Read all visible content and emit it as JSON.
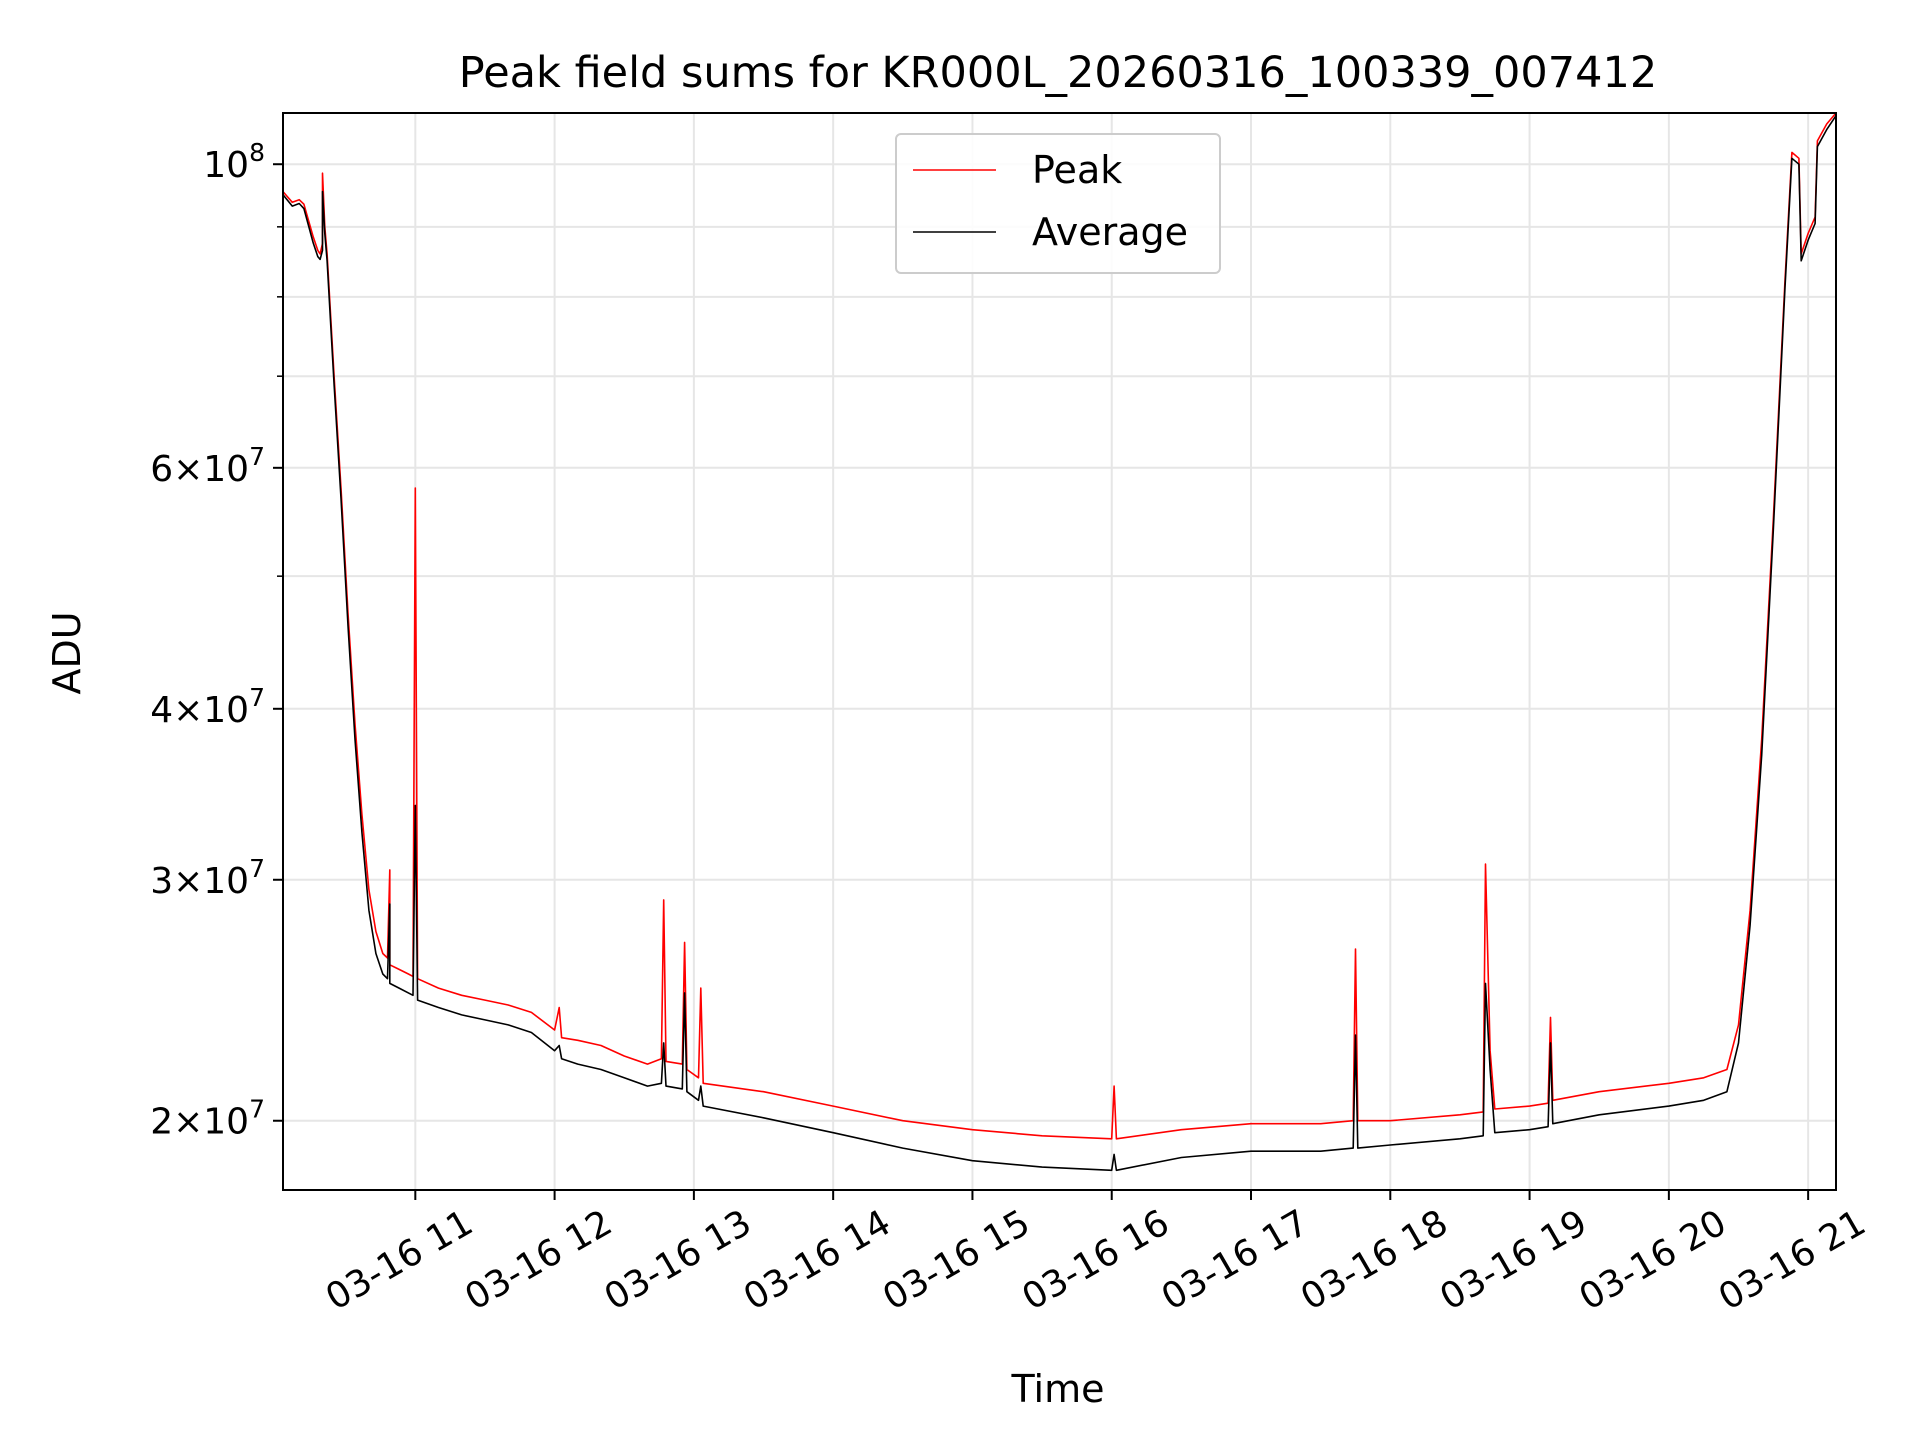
{
  "chart_data": {
    "type": "line",
    "title": "Peak field sums for KR000L_20260316_100339_007412",
    "xlabel": "Time",
    "ylabel": "ADU",
    "yscale": "log",
    "ylim": [
      17800000,
      109000000
    ],
    "xlim": [
      "2026-03-16 10:03",
      "2026-03-16 21:12"
    ],
    "grid": true,
    "legend_position": "upper center",
    "x_ticks": [
      {
        "t": "2026-03-16 11:00",
        "label": "03-16 11"
      },
      {
        "t": "2026-03-16 12:00",
        "label": "03-16 12"
      },
      {
        "t": "2026-03-16 13:00",
        "label": "03-16 13"
      },
      {
        "t": "2026-03-16 14:00",
        "label": "03-16 14"
      },
      {
        "t": "2026-03-16 15:00",
        "label": "03-16 15"
      },
      {
        "t": "2026-03-16 16:00",
        "label": "03-16 16"
      },
      {
        "t": "2026-03-16 17:00",
        "label": "03-16 17"
      },
      {
        "t": "2026-03-16 18:00",
        "label": "03-16 18"
      },
      {
        "t": "2026-03-16 19:00",
        "label": "03-16 19"
      },
      {
        "t": "2026-03-16 20:00",
        "label": "03-16 20"
      },
      {
        "t": "2026-03-16 21:00",
        "label": "03-16 21"
      }
    ],
    "y_major_ticks": [
      {
        "value": 20000000,
        "mant": "2",
        "exp": "7"
      },
      {
        "value": 30000000,
        "mant": "3",
        "exp": "7"
      },
      {
        "value": 40000000,
        "mant": "4",
        "exp": "7"
      },
      {
        "value": 60000000,
        "mant": "6",
        "exp": "7"
      },
      {
        "value": 100000000,
        "mant": "",
        "exp": "8"
      }
    ],
    "y_minor_ticks": [
      50000000,
      70000000,
      80000000,
      90000000
    ],
    "series": [
      {
        "name": "Peak",
        "color": "#ff0000",
        "points": [
          [
            "2026-03-16 10:03",
            95500000
          ],
          [
            "2026-03-16 10:07",
            93800000
          ],
          [
            "2026-03-16 10:10",
            94200000
          ],
          [
            "2026-03-16 10:12",
            93500000
          ],
          [
            "2026-03-16 10:14",
            91000000
          ],
          [
            "2026-03-16 10:16",
            88500000
          ],
          [
            "2026-03-16 10:18",
            86500000
          ],
          [
            "2026-03-16 10:19",
            86000000
          ],
          [
            "2026-03-16 10:20",
            87500000
          ],
          [
            "2026-03-16 10:20",
            98500000
          ],
          [
            "2026-03-16 10:21",
            90000000
          ],
          [
            "2026-03-16 10:22",
            86000000
          ],
          [
            "2026-03-16 10:25",
            70000000
          ],
          [
            "2026-03-16 10:28",
            58000000
          ],
          [
            "2026-03-16 10:31",
            47000000
          ],
          [
            "2026-03-16 10:34",
            39000000
          ],
          [
            "2026-03-16 10:37",
            33500000
          ],
          [
            "2026-03-16 10:40",
            29500000
          ],
          [
            "2026-03-16 10:43",
            27500000
          ],
          [
            "2026-03-16 10:46",
            26500000
          ],
          [
            "2026-03-16 10:48",
            26300000
          ],
          [
            "2026-03-16 10:49",
            30500000
          ],
          [
            "2026-03-16 10:49",
            26000000
          ],
          [
            "2026-03-16 10:53",
            25800000
          ],
          [
            "2026-03-16 10:57",
            25600000
          ],
          [
            "2026-03-16 10:59",
            25500000
          ],
          [
            "2026-03-16 11:00",
            58000000
          ],
          [
            "2026-03-16 11:01",
            25400000
          ],
          [
            "2026-03-16 11:10",
            25000000
          ],
          [
            "2026-03-16 11:20",
            24700000
          ],
          [
            "2026-03-16 11:30",
            24500000
          ],
          [
            "2026-03-16 11:40",
            24300000
          ],
          [
            "2026-03-16 11:50",
            24000000
          ],
          [
            "2026-03-16 12:00",
            23300000
          ],
          [
            "2026-03-16 12:02",
            24200000
          ],
          [
            "2026-03-16 12:03",
            23000000
          ],
          [
            "2026-03-16 12:10",
            22900000
          ],
          [
            "2026-03-16 12:20",
            22700000
          ],
          [
            "2026-03-16 12:30",
            22300000
          ],
          [
            "2026-03-16 12:40",
            22000000
          ],
          [
            "2026-03-16 12:46",
            22200000
          ],
          [
            "2026-03-16 12:47",
            29000000
          ],
          [
            "2026-03-16 12:48",
            22100000
          ],
          [
            "2026-03-16 12:55",
            22000000
          ],
          [
            "2026-03-16 12:56",
            27000000
          ],
          [
            "2026-03-16 12:57",
            21800000
          ],
          [
            "2026-03-16 13:02",
            21500000
          ],
          [
            "2026-03-16 13:03",
            25000000
          ],
          [
            "2026-03-16 13:04",
            21300000
          ],
          [
            "2026-03-16 13:30",
            21000000
          ],
          [
            "2026-03-16 14:00",
            20500000
          ],
          [
            "2026-03-16 14:30",
            20000000
          ],
          [
            "2026-03-16 15:00",
            19700000
          ],
          [
            "2026-03-16 15:30",
            19500000
          ],
          [
            "2026-03-16 16:00",
            19400000
          ],
          [
            "2026-03-16 16:01",
            21200000
          ],
          [
            "2026-03-16 16:02",
            19400000
          ],
          [
            "2026-03-16 16:30",
            19700000
          ],
          [
            "2026-03-16 17:00",
            19900000
          ],
          [
            "2026-03-16 17:30",
            19900000
          ],
          [
            "2026-03-16 17:44",
            20000000
          ],
          [
            "2026-03-16 17:45",
            26700000
          ],
          [
            "2026-03-16 17:46",
            20000000
          ],
          [
            "2026-03-16 18:00",
            20000000
          ],
          [
            "2026-03-16 18:30",
            20200000
          ],
          [
            "2026-03-16 18:40",
            20300000
          ],
          [
            "2026-03-16 18:41",
            30800000
          ],
          [
            "2026-03-16 18:43",
            22500000
          ],
          [
            "2026-03-16 18:45",
            20400000
          ],
          [
            "2026-03-16 19:00",
            20500000
          ],
          [
            "2026-03-16 19:08",
            20600000
          ],
          [
            "2026-03-16 19:09",
            23800000
          ],
          [
            "2026-03-16 19:10",
            20700000
          ],
          [
            "2026-03-16 19:30",
            21000000
          ],
          [
            "2026-03-16 20:00",
            21300000
          ],
          [
            "2026-03-16 20:15",
            21500000
          ],
          [
            "2026-03-16 20:25",
            21800000
          ],
          [
            "2026-03-16 20:30",
            23500000
          ],
          [
            "2026-03-16 20:35",
            28500000
          ],
          [
            "2026-03-16 20:40",
            38000000
          ],
          [
            "2026-03-16 20:45",
            55000000
          ],
          [
            "2026-03-16 20:50",
            82000000
          ],
          [
            "2026-03-16 20:53",
            102000000
          ],
          [
            "2026-03-16 20:56",
            101000000
          ],
          [
            "2026-03-16 20:57",
            86000000
          ],
          [
            "2026-03-16 21:00",
            89000000
          ],
          [
            "2026-03-16 21:03",
            91500000
          ],
          [
            "2026-03-16 21:04",
            104000000
          ],
          [
            "2026-03-16 21:08",
            107000000
          ],
          [
            "2026-03-16 21:12",
            109000000
          ]
        ]
      },
      {
        "name": "Average",
        "color": "#000000",
        "points": [
          [
            "2026-03-16 10:03",
            95000000
          ],
          [
            "2026-03-16 10:07",
            93200000
          ],
          [
            "2026-03-16 10:10",
            93600000
          ],
          [
            "2026-03-16 10:12",
            92800000
          ],
          [
            "2026-03-16 10:14",
            90200000
          ],
          [
            "2026-03-16 10:16",
            87600000
          ],
          [
            "2026-03-16 10:18",
            85600000
          ],
          [
            "2026-03-16 10:19",
            85200000
          ],
          [
            "2026-03-16 10:20",
            86500000
          ],
          [
            "2026-03-16 10:20",
            95500000
          ],
          [
            "2026-03-16 10:21",
            89000000
          ],
          [
            "2026-03-16 10:22",
            85000000
          ],
          [
            "2026-03-16 10:25",
            69000000
          ],
          [
            "2026-03-16 10:28",
            57000000
          ],
          [
            "2026-03-16 10:31",
            46000000
          ],
          [
            "2026-03-16 10:34",
            38000000
          ],
          [
            "2026-03-16 10:37",
            32500000
          ],
          [
            "2026-03-16 10:40",
            28500000
          ],
          [
            "2026-03-16 10:43",
            26500000
          ],
          [
            "2026-03-16 10:46",
            25600000
          ],
          [
            "2026-03-16 10:48",
            25400000
          ],
          [
            "2026-03-16 10:49",
            28800000
          ],
          [
            "2026-03-16 10:49",
            25200000
          ],
          [
            "2026-03-16 10:53",
            25000000
          ],
          [
            "2026-03-16 10:57",
            24800000
          ],
          [
            "2026-03-16 10:59",
            24700000
          ],
          [
            "2026-03-16 11:00",
            34000000
          ],
          [
            "2026-03-16 11:01",
            24500000
          ],
          [
            "2026-03-16 11:10",
            24200000
          ],
          [
            "2026-03-16 11:20",
            23900000
          ],
          [
            "2026-03-16 11:30",
            23700000
          ],
          [
            "2026-03-16 11:40",
            23500000
          ],
          [
            "2026-03-16 11:50",
            23200000
          ],
          [
            "2026-03-16 12:00",
            22500000
          ],
          [
            "2026-03-16 12:02",
            22700000
          ],
          [
            "2026-03-16 12:03",
            22200000
          ],
          [
            "2026-03-16 12:10",
            22000000
          ],
          [
            "2026-03-16 12:20",
            21800000
          ],
          [
            "2026-03-16 12:30",
            21500000
          ],
          [
            "2026-03-16 12:40",
            21200000
          ],
          [
            "2026-03-16 12:46",
            21300000
          ],
          [
            "2026-03-16 12:47",
            22800000
          ],
          [
            "2026-03-16 12:48",
            21200000
          ],
          [
            "2026-03-16 12:55",
            21100000
          ],
          [
            "2026-03-16 12:56",
            24800000
          ],
          [
            "2026-03-16 12:57",
            21000000
          ],
          [
            "2026-03-16 13:02",
            20700000
          ],
          [
            "2026-03-16 13:03",
            21200000
          ],
          [
            "2026-03-16 13:04",
            20500000
          ],
          [
            "2026-03-16 13:30",
            20100000
          ],
          [
            "2026-03-16 14:00",
            19600000
          ],
          [
            "2026-03-16 14:30",
            19100000
          ],
          [
            "2026-03-16 15:00",
            18700000
          ],
          [
            "2026-03-16 15:30",
            18500000
          ],
          [
            "2026-03-16 16:00",
            18400000
          ],
          [
            "2026-03-16 16:01",
            18900000
          ],
          [
            "2026-03-16 16:02",
            18400000
          ],
          [
            "2026-03-16 16:30",
            18800000
          ],
          [
            "2026-03-16 17:00",
            19000000
          ],
          [
            "2026-03-16 17:30",
            19000000
          ],
          [
            "2026-03-16 17:44",
            19100000
          ],
          [
            "2026-03-16 17:45",
            23100000
          ],
          [
            "2026-03-16 17:46",
            19100000
          ],
          [
            "2026-03-16 18:00",
            19200000
          ],
          [
            "2026-03-16 18:30",
            19400000
          ],
          [
            "2026-03-16 18:40",
            19500000
          ],
          [
            "2026-03-16 18:41",
            25200000
          ],
          [
            "2026-03-16 18:43",
            21800000
          ],
          [
            "2026-03-16 18:45",
            19600000
          ],
          [
            "2026-03-16 19:00",
            19700000
          ],
          [
            "2026-03-16 19:08",
            19800000
          ],
          [
            "2026-03-16 19:09",
            22800000
          ],
          [
            "2026-03-16 19:10",
            19900000
          ],
          [
            "2026-03-16 19:30",
            20200000
          ],
          [
            "2026-03-16 20:00",
            20500000
          ],
          [
            "2026-03-16 20:15",
            20700000
          ],
          [
            "2026-03-16 20:25",
            21000000
          ],
          [
            "2026-03-16 20:30",
            22800000
          ],
          [
            "2026-03-16 20:35",
            27800000
          ],
          [
            "2026-03-16 20:40",
            37000000
          ],
          [
            "2026-03-16 20:45",
            54000000
          ],
          [
            "2026-03-16 20:50",
            81000000
          ],
          [
            "2026-03-16 20:53",
            101000000
          ],
          [
            "2026-03-16 20:56",
            100000000
          ],
          [
            "2026-03-16 20:57",
            85000000
          ],
          [
            "2026-03-16 21:00",
            88000000
          ],
          [
            "2026-03-16 21:03",
            90500000
          ],
          [
            "2026-03-16 21:04",
            103000000
          ],
          [
            "2026-03-16 21:08",
            106000000
          ],
          [
            "2026-03-16 21:12",
            108500000
          ]
        ]
      }
    ]
  }
}
